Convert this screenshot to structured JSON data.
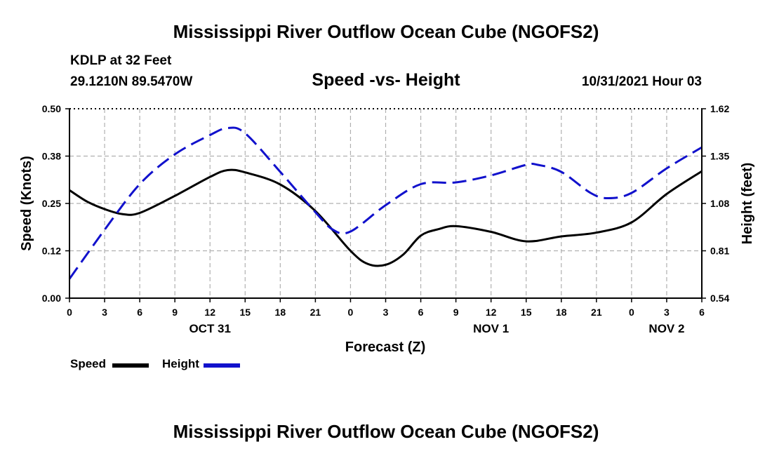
{
  "title": "Mississippi River Outflow Ocean Cube (NGOFS2)",
  "station": "KDLP at 32 Feet",
  "coordinates": "29.1210N  89.5470W",
  "subtitle": "Speed -vs- Height",
  "datetime": "10/31/2021 Hour 03",
  "legend": {
    "speed": "Speed",
    "height": "Height"
  },
  "colors": {
    "speed": "#000000",
    "height": "#1111cc",
    "grid": "#b0b0b0"
  },
  "chart_data": {
    "type": "line",
    "title": "Speed -vs- Height",
    "xlabel": "Forecast (Z)",
    "ylabel": "Speed (Knots)",
    "y2label": "Height (feet)",
    "x_ticks": [
      "0",
      "3",
      "6",
      "9",
      "12",
      "15",
      "18",
      "21",
      "0",
      "3",
      "6",
      "9",
      "12",
      "15",
      "18",
      "21",
      "0",
      "3",
      "6"
    ],
    "x_hours": [
      0,
      3,
      6,
      9,
      12,
      15,
      18,
      21,
      24,
      27,
      30,
      33,
      36,
      39,
      42,
      45,
      48,
      51,
      54
    ],
    "date_labels": [
      {
        "label": "OCT 31",
        "hour": 12
      },
      {
        "label": "NOV 1",
        "hour": 36
      },
      {
        "label": "NOV 2",
        "hour": 51
      }
    ],
    "xlim": [
      0,
      54
    ],
    "ylim": [
      0,
      0.5
    ],
    "y_ticks": [
      "0.00",
      "0.12",
      "0.25",
      "0.38",
      "0.50"
    ],
    "y_tick_values": [
      0,
      0.125,
      0.25,
      0.375,
      0.5
    ],
    "y2lim": [
      0.54,
      1.62
    ],
    "y2_ticks": [
      "0.54",
      "0.81",
      "1.08",
      "1.35",
      "1.62"
    ],
    "y2_tick_values": [
      0.54,
      0.81,
      1.08,
      1.35,
      1.62
    ],
    "series": [
      {
        "name": "Speed",
        "axis": "left",
        "style": "solid",
        "x": [
          0,
          1.5,
          3,
          4.5,
          6,
          9,
          12,
          13.5,
          15,
          18,
          21,
          24,
          25.5,
          27,
          28.5,
          30,
          31.5,
          33,
          36,
          39,
          42,
          45,
          48,
          51,
          54
        ],
        "y": [
          0.285,
          0.255,
          0.235,
          0.222,
          0.225,
          0.27,
          0.32,
          0.338,
          0.332,
          0.3,
          0.23,
          0.125,
          0.09,
          0.088,
          0.115,
          0.165,
          0.182,
          0.19,
          0.175,
          0.15,
          0.163,
          0.173,
          0.2,
          0.275,
          0.335
        ]
      },
      {
        "name": "Height",
        "axis": "right",
        "style": "dashed",
        "x": [
          0,
          3,
          6,
          9,
          12,
          13.5,
          15,
          18,
          21,
          22.5,
          24,
          27,
          30,
          33,
          36,
          39,
          40,
          42,
          44.5,
          46,
          48,
          51,
          54
        ],
        "y": [
          0.65,
          0.93,
          1.19,
          1.36,
          1.47,
          1.51,
          1.48,
          1.26,
          1.03,
          0.93,
          0.92,
          1.07,
          1.19,
          1.2,
          1.24,
          1.3,
          1.3,
          1.26,
          1.14,
          1.11,
          1.14,
          1.28,
          1.4
        ]
      }
    ]
  }
}
